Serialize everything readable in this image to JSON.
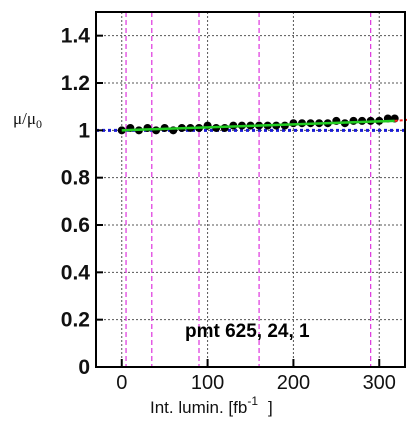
{
  "chart_data": {
    "type": "scatter",
    "title": "",
    "ylabel": {
      "main": "μ/μ",
      "sub": "0"
    },
    "xlabel": {
      "main": "Int. lumin. [fb",
      "sup": "-1",
      "close": "]"
    },
    "annotation": "pmt  625, 24, 1",
    "xlim": [
      -30,
      330
    ],
    "ylim": [
      0,
      1.5
    ],
    "x_ticks": [
      0,
      100,
      200,
      300
    ],
    "x_tick_labels": [
      "0",
      "100",
      "200",
      "300"
    ],
    "y_ticks": [
      0,
      0.2,
      0.4,
      0.6,
      0.8,
      1,
      1.2,
      1.4
    ],
    "y_tick_labels": [
      "0",
      "0.2",
      "0.4",
      "0.6",
      "0.8",
      "1",
      "1.2",
      "1.4"
    ],
    "grid": true,
    "vertical_markers_x": [
      5,
      35,
      90,
      160,
      290
    ],
    "reference_line_y": 1.0,
    "fit_line": {
      "x": [
        0,
        318
      ],
      "y": [
        1.0,
        1.04
      ]
    },
    "fit_extrapolation": {
      "x": [
        318,
        335
      ],
      "y": [
        1.04,
        1.045
      ]
    },
    "series": [
      {
        "points": [
          [
            0,
            1.0
          ],
          [
            10,
            1.01
          ],
          [
            20,
            1.0
          ],
          [
            30,
            1.01
          ],
          [
            40,
            1.0
          ],
          [
            50,
            1.01
          ],
          [
            60,
            1.0
          ],
          [
            70,
            1.01
          ],
          [
            80,
            1.01
          ],
          [
            90,
            1.01
          ],
          [
            100,
            1.02
          ],
          [
            110,
            1.01
          ],
          [
            120,
            1.01
          ],
          [
            130,
            1.02
          ],
          [
            140,
            1.02
          ],
          [
            150,
            1.02
          ],
          [
            160,
            1.02
          ],
          [
            170,
            1.02
          ],
          [
            180,
            1.02
          ],
          [
            190,
            1.02
          ],
          [
            200,
            1.03
          ],
          [
            210,
            1.03
          ],
          [
            220,
            1.03
          ],
          [
            230,
            1.03
          ],
          [
            240,
            1.03
          ],
          [
            250,
            1.04
          ],
          [
            260,
            1.03
          ],
          [
            270,
            1.04
          ],
          [
            280,
            1.04
          ],
          [
            290,
            1.04
          ],
          [
            300,
            1.04
          ],
          [
            310,
            1.05
          ],
          [
            318,
            1.05
          ]
        ]
      }
    ],
    "colors": {
      "points": "#000000",
      "fit": "#22cc22",
      "reference": "#1b1bd6",
      "extrapolation": "#ff2222",
      "markers": "#dd33dd",
      "grid": "#555555"
    }
  }
}
